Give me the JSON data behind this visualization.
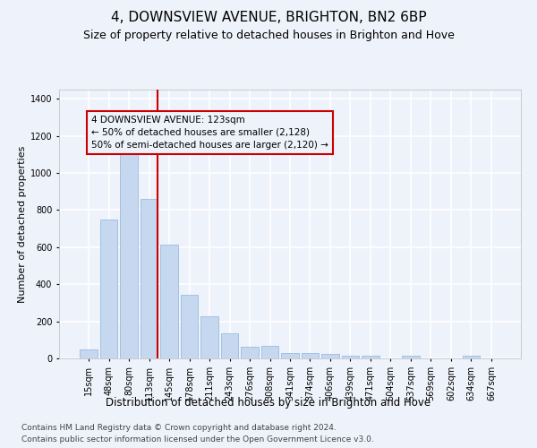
{
  "title": "4, DOWNSVIEW AVENUE, BRIGHTON, BN2 6BP",
  "subtitle": "Size of property relative to detached houses in Brighton and Hove",
  "xlabel": "Distribution of detached houses by size in Brighton and Hove",
  "ylabel": "Number of detached properties",
  "bar_color": "#c5d8f0",
  "bar_edgecolor": "#8cb4d8",
  "categories": [
    "15sqm",
    "48sqm",
    "80sqm",
    "113sqm",
    "145sqm",
    "178sqm",
    "211sqm",
    "243sqm",
    "276sqm",
    "308sqm",
    "341sqm",
    "374sqm",
    "406sqm",
    "439sqm",
    "471sqm",
    "504sqm",
    "537sqm",
    "569sqm",
    "602sqm",
    "634sqm",
    "667sqm"
  ],
  "values": [
    50,
    750,
    1100,
    860,
    615,
    345,
    225,
    135,
    65,
    70,
    30,
    30,
    22,
    15,
    15,
    0,
    13,
    0,
    0,
    13,
    0
  ],
  "vline_index": 3,
  "vline_color": "#cc0000",
  "annotation_line1": "4 DOWNSVIEW AVENUE: 123sqm",
  "annotation_line2": "← 50% of detached houses are smaller (2,128)",
  "annotation_line3": "50% of semi-detached houses are larger (2,120) →",
  "ylim": [
    0,
    1450
  ],
  "yticks": [
    0,
    200,
    400,
    600,
    800,
    1000,
    1200,
    1400
  ],
  "footnote1": "Contains HM Land Registry data © Crown copyright and database right 2024.",
  "footnote2": "Contains public sector information licensed under the Open Government Licence v3.0.",
  "background_color": "#eef2fb",
  "grid_color": "#ffffff",
  "title_fontsize": 11,
  "subtitle_fontsize": 9,
  "xlabel_fontsize": 8.5,
  "ylabel_fontsize": 8,
  "tick_fontsize": 7,
  "annot_fontsize": 7.5,
  "footnote_fontsize": 6.5
}
